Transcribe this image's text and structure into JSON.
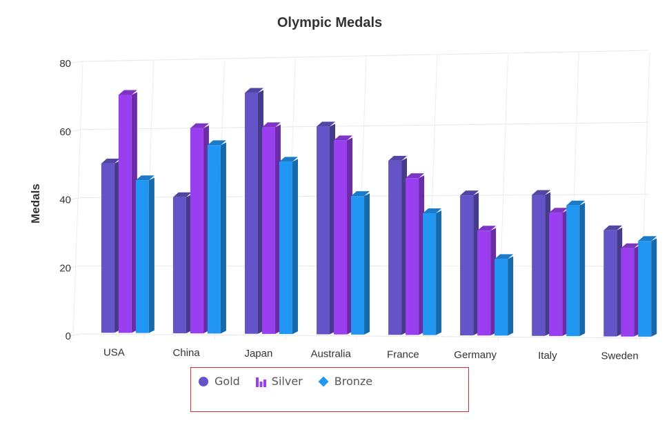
{
  "chart_data": {
    "type": "bar",
    "title": "Olympic Medals",
    "xlabel": "",
    "ylabel": "Medals",
    "ylim": [
      0,
      80
    ],
    "yticks": [
      0,
      20,
      40,
      60,
      80
    ],
    "categories": [
      "USA",
      "China",
      "Japan",
      "Australia",
      "France",
      "Germany",
      "Italy",
      "Sweden"
    ],
    "series": [
      {
        "name": "Gold",
        "color": "#6355c7",
        "values": [
          50,
          40,
          70,
          60,
          50,
          40,
          40,
          30
        ]
      },
      {
        "name": "Silver",
        "color": "#9a3ff0",
        "values": [
          70,
          60,
          60,
          56,
          45,
          30,
          35,
          25
        ]
      },
      {
        "name": "Bronze",
        "color": "#2196f3",
        "values": [
          45,
          55,
          50,
          40,
          35,
          22,
          37,
          27
        ]
      }
    ],
    "grid": true,
    "legend_position": "bottom"
  },
  "legend": {
    "items": [
      {
        "label": "Gold",
        "icon": "circle-icon",
        "color": "#6355c7"
      },
      {
        "label": "Silver",
        "icon": "column-icon",
        "color": "#9a3ff0"
      },
      {
        "label": "Bronze",
        "icon": "diamond-icon",
        "color": "#2196f3"
      }
    ]
  }
}
